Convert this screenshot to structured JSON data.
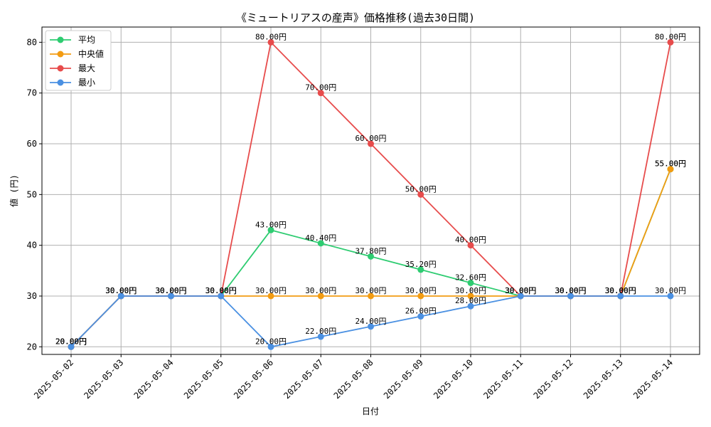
{
  "chart_data": {
    "type": "line",
    "title": "《ミュートリアスの産声》価格推移(過去30日間)",
    "xlabel": "日付",
    "ylabel": "値 (円)",
    "ylim": [
      18.5,
      83
    ],
    "yticks": [
      20,
      30,
      40,
      50,
      60,
      70,
      80
    ],
    "grid": true,
    "legend_position": "top-left",
    "label_suffix": "円",
    "x": [
      "2025-05-02",
      "2025-05-03",
      "2025-05-04",
      "2025-05-05",
      "2025-05-06",
      "2025-05-07",
      "2025-05-08",
      "2025-05-09",
      "2025-05-10",
      "2025-05-11",
      "2025-05-12",
      "2025-05-13",
      "2025-05-14"
    ],
    "series": [
      {
        "name": "平均",
        "color": "#2ecc71",
        "values": [
          20,
          30,
          30,
          30,
          43,
          40.4,
          37.8,
          35.2,
          32.6,
          30,
          30,
          30,
          55
        ]
      },
      {
        "name": "中央値",
        "color": "#f39c12",
        "values": [
          20,
          30,
          30,
          30,
          30,
          30,
          30,
          30,
          30,
          30,
          30,
          30,
          55
        ]
      },
      {
        "name": "最大",
        "color": "#e74c4c",
        "values": [
          20,
          30,
          30,
          30,
          80,
          70,
          60,
          50,
          40,
          30,
          30,
          30,
          80
        ]
      },
      {
        "name": "最小",
        "color": "#4a90e2",
        "values": [
          20,
          30,
          30,
          30,
          20,
          22,
          24,
          26,
          28,
          30,
          30,
          30,
          30
        ]
      }
    ]
  }
}
